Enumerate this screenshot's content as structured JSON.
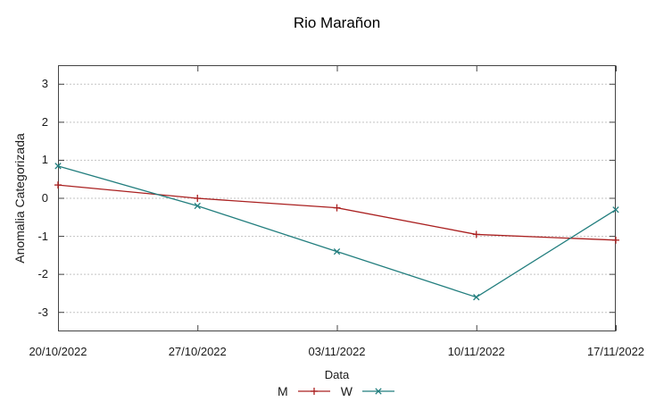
{
  "title": "Rio Marañon",
  "chart_data": {
    "type": "line",
    "title": "Rio Marañon",
    "xlabel": "Data",
    "ylabel": "Anomalia Categorizada",
    "x_tick_labels": [
      "20/10/2022",
      "27/10/2022",
      "03/11/2022",
      "10/11/2022",
      "17/11/2022"
    ],
    "y_ticks": [
      3,
      2,
      1,
      0,
      -1,
      -2,
      -3
    ],
    "ylim": [
      -3.5,
      3.5
    ],
    "grid": "horizontal-dashed",
    "legend_position": "bottom-center",
    "colors": {
      "series_m": "#aa2020",
      "series_w": "#227e7e",
      "gridline": "#c3c3c3",
      "border": "#444444"
    },
    "series": [
      {
        "name": "M",
        "marker": "plus",
        "color": "#aa2020",
        "values": [
          0.35,
          0.0,
          -0.25,
          -0.95,
          -1.1
        ]
      },
      {
        "name": "W",
        "marker": "cross",
        "color": "#227e7e",
        "values": [
          0.85,
          -0.2,
          -1.4,
          -2.6,
          -0.3
        ]
      }
    ]
  }
}
